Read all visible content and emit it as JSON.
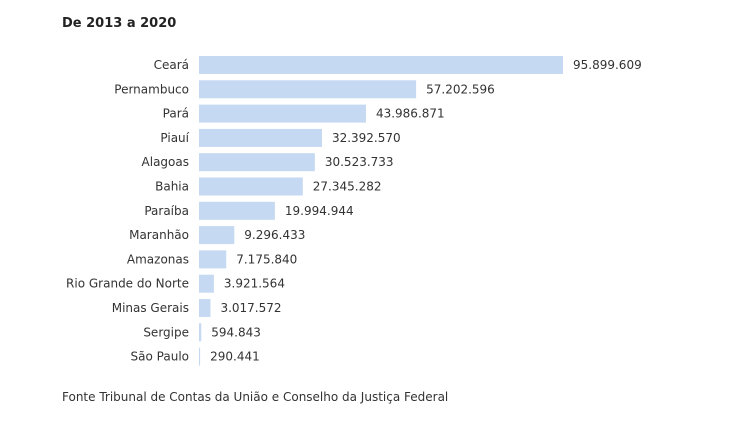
{
  "chart_data": {
    "type": "bar",
    "orientation": "horizontal",
    "title": "De 2013 a 2020",
    "categories": [
      "Ceará",
      "Pernambuco",
      "Pará",
      "Piauí",
      "Alagoas",
      "Bahia",
      "Paraíba",
      "Maranhão",
      "Amazonas",
      "Rio Grande do Norte",
      "Minas Gerais",
      "Sergipe",
      "São Paulo"
    ],
    "values": [
      95899609,
      57202596,
      43986871,
      32392570,
      30523733,
      27345282,
      19994944,
      9296433,
      7175840,
      3921564,
      3017572,
      594843,
      290441
    ],
    "data_labels": [
      "95.899.609",
      "57.202.596",
      "43.986.871",
      "32.392.570",
      "30.523.733",
      "27.345.282",
      "19.994.944",
      "9.296.433",
      "7.175.840",
      "3.921.564",
      "3.017.572",
      "594.843",
      "290.441"
    ],
    "bar_color": "#c5d9f2",
    "xlim": [
      0,
      95899609
    ],
    "grid": false,
    "legend": "none"
  },
  "source": "Fonte Tribunal de Contas da União e Conselho da Justiça Federal"
}
